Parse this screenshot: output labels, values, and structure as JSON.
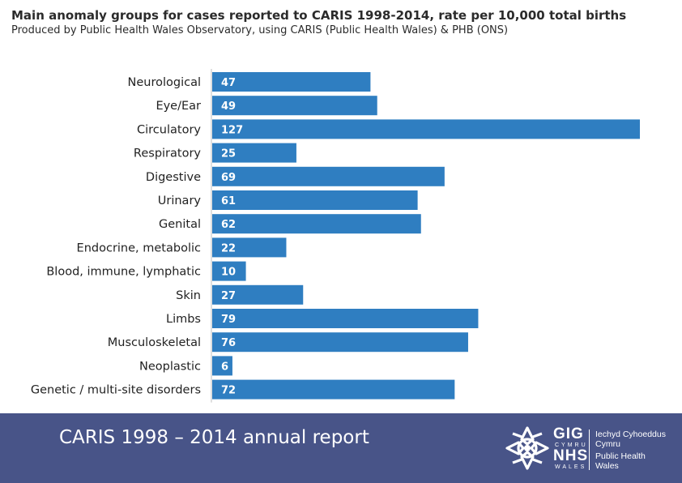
{
  "chart_data": {
    "type": "bar",
    "orientation": "horizontal",
    "title": "Main anomaly groups for cases reported to CARIS 1998-2014, rate per 10,000 total births",
    "subtitle": "Produced by Public Health Wales Observatory, using CARIS (Public Health Wales) & PHB (ONS)",
    "categories": [
      "Neurological",
      "Eye/Ear",
      "Circulatory",
      "Respiratory",
      "Digestive",
      "Urinary",
      "Genital",
      "Endocrine, metabolic",
      "Blood, immune, lymphatic",
      "Skin",
      "Limbs",
      "Musculoskeletal",
      "Neoplastic",
      "Genetic / multi-site disorders"
    ],
    "values": [
      47,
      49,
      127,
      25,
      69,
      61,
      62,
      22,
      10,
      27,
      79,
      76,
      6,
      72
    ],
    "xlim": [
      0,
      127
    ],
    "grid": false,
    "bar_color": "#2f7ec1",
    "data_labels": "inside-bar-start"
  },
  "footer": {
    "report_title": "CARIS 1998 – 2014 annual report",
    "logo": {
      "icon": "celtic-knot-icon",
      "gig": "GIG",
      "cymru": "CYMRU",
      "nhs": "NHS",
      "wales": "WALES",
      "org_welsh_line1": "Iechyd Cyhoeddus",
      "org_welsh_line2": "Cymru",
      "org_english_line1": "Public Health",
      "org_english_line2": "Wales"
    },
    "background_color": "#485488"
  }
}
